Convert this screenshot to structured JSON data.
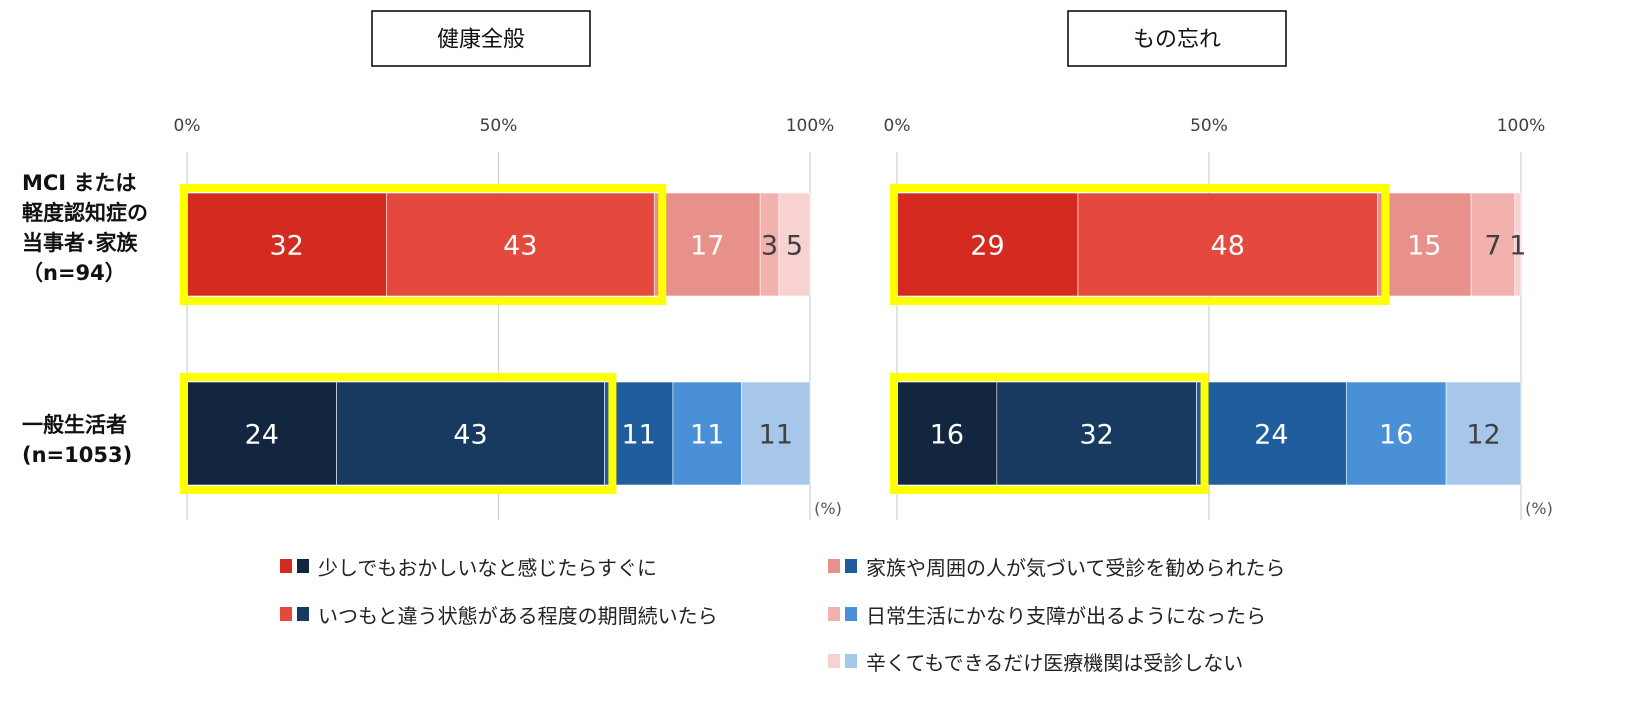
{
  "chart_data": [
    {
      "type": "bar",
      "orientation": "horizontal",
      "stacked": true,
      "title": "健康全般",
      "unit": "(%)",
      "xlim": [
        0,
        100
      ],
      "ticks": [
        "0%",
        "50%",
        "100%"
      ],
      "grid": true,
      "categories": [
        "MCI または\n軽度認知症の\n当事者･家族\n（n=94）",
        "一般生活者\n(n=1053)"
      ],
      "series": [
        {
          "name": "少しでもおかしいなと感じたらすぐに",
          "values": [
            32,
            24
          ]
        },
        {
          "name": "いつもと違う状態がある程度の期間続いたら",
          "values": [
            43,
            43
          ]
        },
        {
          "name": "家族や周囲の人が気づいて受診を勧められたら",
          "values": [
            17,
            11
          ]
        },
        {
          "name": "日常生活にかなり支障が出るようになったら",
          "values": [
            3,
            11
          ]
        },
        {
          "name": "辛くてもできるだけ医療機関は受診しない",
          "values": [
            5,
            11
          ]
        }
      ]
    },
    {
      "type": "bar",
      "orientation": "horizontal",
      "stacked": true,
      "title": "もの忘れ",
      "unit": "(%)",
      "xlim": [
        0,
        100
      ],
      "ticks": [
        "0%",
        "50%",
        "100%"
      ],
      "grid": true,
      "categories": [
        "MCI または\n軽度認知症の\n当事者･家族\n（n=94）",
        "一般生活者\n(n=1053)"
      ],
      "series": [
        {
          "name": "少しでもおかしいなと感じたらすぐに",
          "values": [
            29,
            16
          ]
        },
        {
          "name": "いつもと違う状態がある程度の期間続いたら",
          "values": [
            48,
            32
          ]
        },
        {
          "name": "家族や周囲の人が気づいて受診を勧められたら",
          "values": [
            15,
            24
          ]
        },
        {
          "name": "日常生活にかなり支障が出るようになったら",
          "values": [
            7,
            16
          ]
        },
        {
          "name": "辛くてもできるだけ医療機関は受診しない",
          "values": [
            1,
            12
          ]
        }
      ]
    }
  ],
  "colors": {
    "red": [
      "#d42a1f",
      "#e5483c",
      "#e8918b",
      "#f2b1ad",
      "#f8d2d0"
    ],
    "blue": [
      "#12263f",
      "#183a61",
      "#1f5d9d",
      "#4a90d6",
      "#a6c7ea"
    ],
    "label_light": "#ffffff",
    "label_dark": "#404040",
    "highlight": "#ffff00"
  },
  "highlight_note": "first two segments of each bar are outlined in yellow",
  "legend": {
    "placement": "bottom",
    "items": [
      "少しでもおかしいなと感じたらすぐに",
      "家族や周囲の人が気づいて受診を勧められたら",
      "いつもと違う状態がある程度の期間続いたら",
      "日常生活にかなり支障が出るようになったら",
      "辛くてもできるだけ医療機関は受診しない"
    ]
  }
}
